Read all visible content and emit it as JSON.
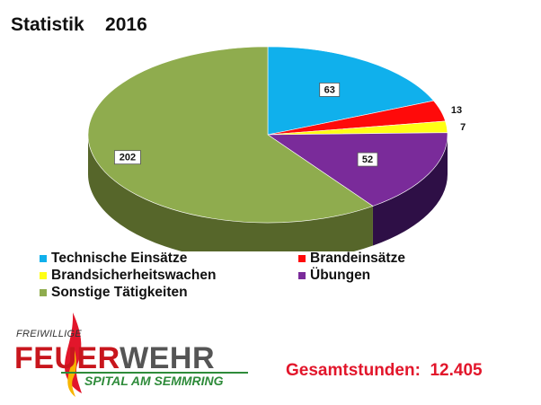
{
  "header": {
    "title": "Statistik    2016"
  },
  "chart_data": {
    "type": "pie",
    "style": "3d",
    "title": "Statistik    2016",
    "legend_position": "bottom",
    "categories": [
      "Technische Einsätze",
      "Brandeinsätze",
      "Brandsicherheitswachen",
      "Übungen",
      "Sonstige Tätigkeiten"
    ],
    "values": [
      63,
      13,
      7,
      52,
      202
    ],
    "colors": [
      "#10b0ec",
      "#ff0a0a",
      "#ffff14",
      "#7a2b9a",
      "#8fac4e"
    ],
    "side_colors": [
      "#0a7ea8",
      "#a80000",
      "#b9b900",
      "#2e0f46",
      "#56662a"
    ]
  },
  "legend": {
    "items": [
      {
        "label": "Technische Einsätze",
        "color": "#10b0ec"
      },
      {
        "label": "Brandeinsätze",
        "color": "#ff0a0a"
      },
      {
        "label": "Brandsicherheitswachen",
        "color": "#ffff14"
      },
      {
        "label": "Übungen",
        "color": "#7a2b9a"
      },
      {
        "label": "Sonstige Tätigkeiten",
        "color": "#8fac4e"
      }
    ]
  },
  "logo": {
    "small": "FREIWILLIGE",
    "main_a": "FEUER",
    "main_b": "WEHR",
    "sub": "SPITAL AM SEMMRING"
  },
  "footer": {
    "total": "Gesamtstunden:  12.405"
  }
}
